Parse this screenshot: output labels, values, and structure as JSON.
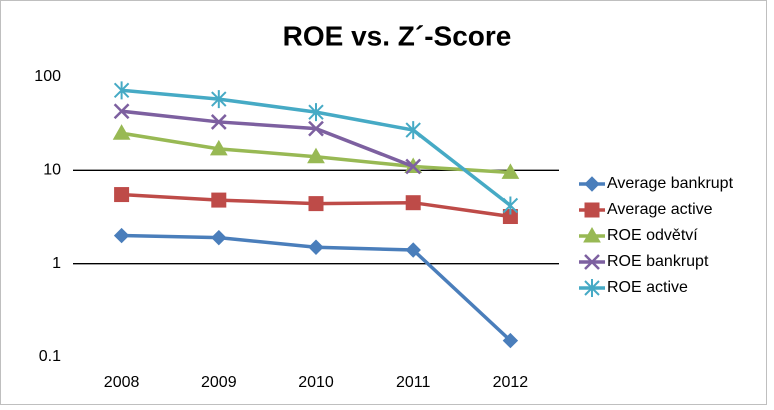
{
  "chart_data": {
    "type": "line",
    "title": "ROE vs. Z´-Score",
    "categories": [
      "2008",
      "2009",
      "2010",
      "2011",
      "2012"
    ],
    "yscale": "log",
    "ylim": [
      0.1,
      100
    ],
    "yticks": [
      0.1,
      1,
      10,
      100
    ],
    "grid": true,
    "legend": "right",
    "series": [
      {
        "name": "Average bankrupt",
        "color": "#4a7ebb",
        "marker": "diamond",
        "values": [
          2.0,
          1.9,
          1.5,
          1.4,
          0.15
        ]
      },
      {
        "name": "Average active",
        "color": "#be4b48",
        "marker": "square",
        "values": [
          5.5,
          4.8,
          4.4,
          4.5,
          3.2
        ]
      },
      {
        "name": "ROE odvětví",
        "color": "#98b954",
        "marker": "triangle",
        "values": [
          25,
          17,
          14,
          11,
          9.5
        ]
      },
      {
        "name": "ROE bankrupt",
        "color": "#7d60a0",
        "marker": "x",
        "values": [
          43,
          33,
          28,
          11,
          null
        ]
      },
      {
        "name": "ROE active",
        "color": "#46aac5",
        "marker": "star",
        "values": [
          72,
          58,
          42,
          27,
          4.2
        ]
      }
    ]
  }
}
